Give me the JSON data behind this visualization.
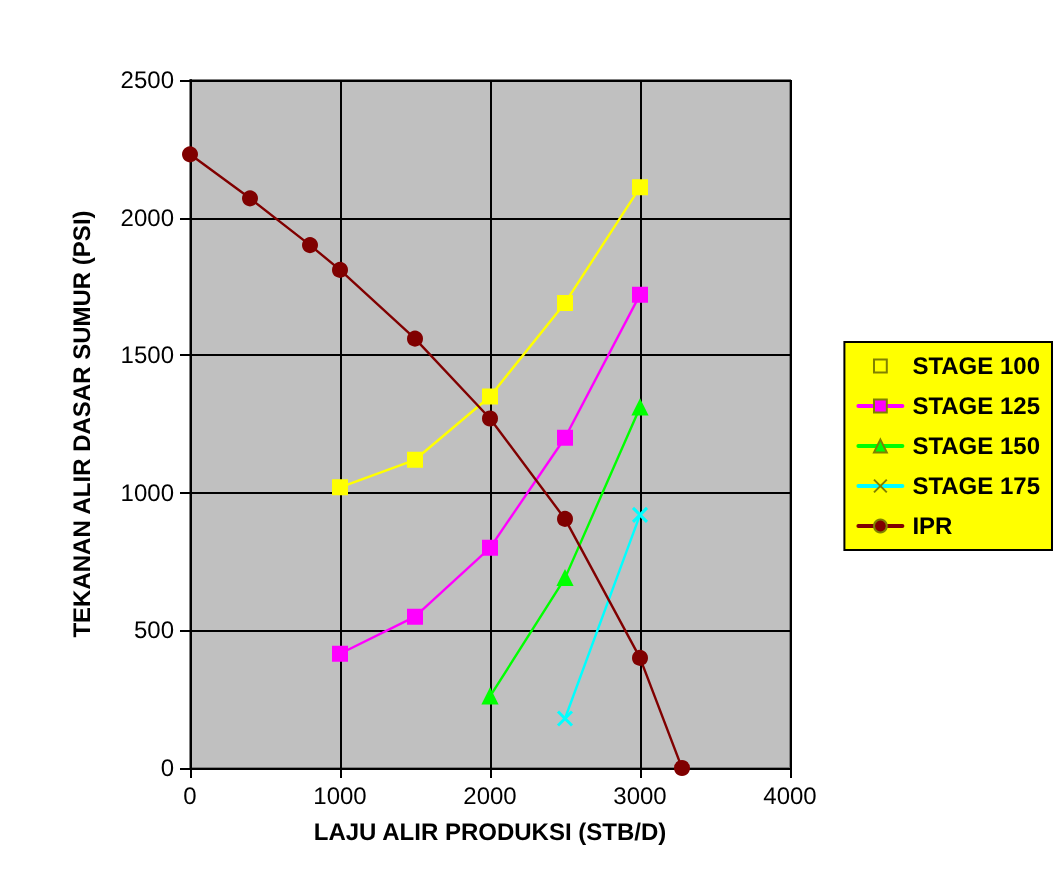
{
  "chart_data": {
    "type": "line",
    "xlabel": "LAJU ALIR PRODUKSI (STB/D)",
    "ylabel": "TEKANAN ALIR DASAR SUMUR (PSI)",
    "series": [
      {
        "name": "STAGE 100",
        "color": "#ffff00",
        "marker": "square",
        "x": [
          1000,
          1500,
          2000,
          2500,
          3000
        ],
        "values": [
          1020,
          1120,
          1350,
          1690,
          2110
        ]
      },
      {
        "name": "STAGE 125",
        "color": "#ff00ff",
        "marker": "square",
        "x": [
          1000,
          1500,
          2000,
          2500,
          3000
        ],
        "values": [
          415,
          550,
          800,
          1200,
          1720
        ]
      },
      {
        "name": "STAGE 150",
        "color": "#00ff00",
        "marker": "triangle",
        "x": [
          2000,
          2500,
          3000
        ],
        "values": [
          260,
          690,
          1310
        ]
      },
      {
        "name": "STAGE 175",
        "color": "#00ffff",
        "marker": "cross",
        "x": [
          2500,
          3000
        ],
        "values": [
          180,
          920
        ]
      },
      {
        "name": "IPR",
        "color": "#800000",
        "marker": "circle",
        "x": [
          0,
          400,
          800,
          1000,
          1500,
          2000,
          2500,
          3000,
          3280
        ],
        "values": [
          2230,
          2070,
          1900,
          1810,
          1560,
          1270,
          905,
          400,
          0
        ]
      }
    ],
    "xlim": [
      0,
      4000
    ],
    "xticks": [
      0,
      1000,
      2000,
      3000,
      4000
    ],
    "ylim": [
      0,
      2500
    ],
    "yticks": [
      0,
      500,
      1000,
      1500,
      2000,
      2500
    ],
    "grid": true,
    "legend": "right"
  }
}
